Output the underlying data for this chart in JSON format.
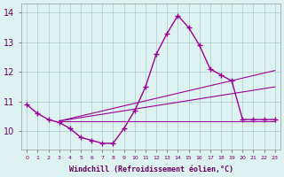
{
  "x": [
    0,
    1,
    2,
    3,
    4,
    5,
    6,
    7,
    8,
    9,
    10,
    11,
    12,
    13,
    14,
    15,
    16,
    17,
    18,
    19,
    20,
    21,
    22,
    23
  ],
  "windchill": [
    10.9,
    10.6,
    10.4,
    10.3,
    10.1,
    9.8,
    9.7,
    9.6,
    9.6,
    10.1,
    10.7,
    11.5,
    12.6,
    13.3,
    13.9,
    13.5,
    12.9,
    12.1,
    11.9,
    11.7,
    10.4,
    10.4,
    10.4,
    10.4
  ],
  "bg_color": "#dff2f2",
  "line_color": "#990099",
  "grid_color": "#aacccc",
  "xlabel": "Windchill (Refroidissement éolien,°C)",
  "ylim": [
    9.4,
    14.3
  ],
  "xlim": [
    -0.5,
    23.5
  ],
  "yticks": [
    10,
    11,
    12,
    13,
    14
  ],
  "xticks": [
    0,
    1,
    2,
    3,
    4,
    5,
    6,
    7,
    8,
    9,
    10,
    11,
    12,
    13,
    14,
    15,
    16,
    17,
    18,
    19,
    20,
    21,
    22,
    23
  ],
  "straight_lines": [
    {
      "x": [
        3,
        23
      ],
      "y": [
        10.35,
        10.35
      ]
    },
    {
      "x": [
        3,
        23
      ],
      "y": [
        10.35,
        11.5
      ]
    },
    {
      "x": [
        3,
        23
      ],
      "y": [
        10.35,
        12.05
      ]
    }
  ]
}
